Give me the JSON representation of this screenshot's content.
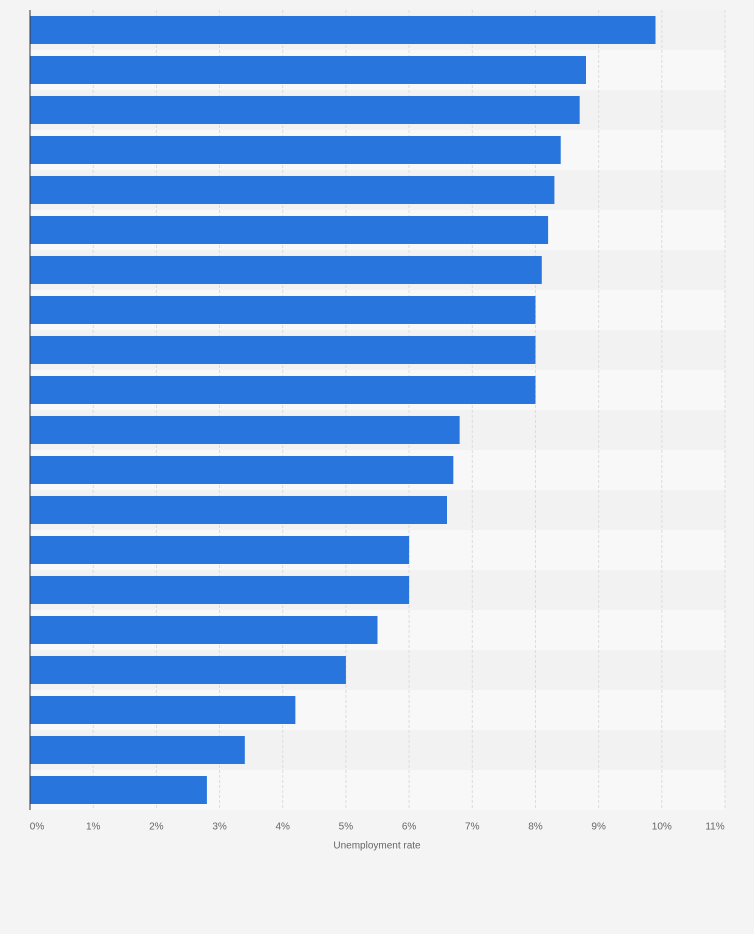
{
  "chart_data": {
    "type": "bar",
    "orientation": "horizontal",
    "x_label": "Unemployment rate",
    "categories": [
      null,
      null,
      null,
      null,
      null,
      null,
      null,
      null,
      null,
      null,
      null,
      null,
      null,
      null,
      null,
      null,
      null,
      null,
      null,
      null
    ],
    "values": [
      9.9,
      8.8,
      8.7,
      8.4,
      8.3,
      8.2,
      8.1,
      8.0,
      8.0,
      8.0,
      6.8,
      6.7,
      6.6,
      6.0,
      6.0,
      5.5,
      5.0,
      4.2,
      3.4,
      2.8
    ],
    "color": "#2876dd",
    "xlim": [
      0,
      11
    ],
    "xticks": [
      {
        "value": 0,
        "label": "0%"
      },
      {
        "value": 1,
        "label": "1%"
      },
      {
        "value": 2,
        "label": "2%"
      },
      {
        "value": 3,
        "label": "3%"
      },
      {
        "value": 4,
        "label": "4%"
      },
      {
        "value": 5,
        "label": "5%"
      },
      {
        "value": 6,
        "label": "6%"
      },
      {
        "value": 7,
        "label": "7%"
      },
      {
        "value": 8,
        "label": "8%"
      },
      {
        "value": 9,
        "label": "9%"
      },
      {
        "value": 10,
        "label": "10%"
      },
      {
        "value": 11,
        "label": "11%"
      }
    ],
    "grid": true
  }
}
